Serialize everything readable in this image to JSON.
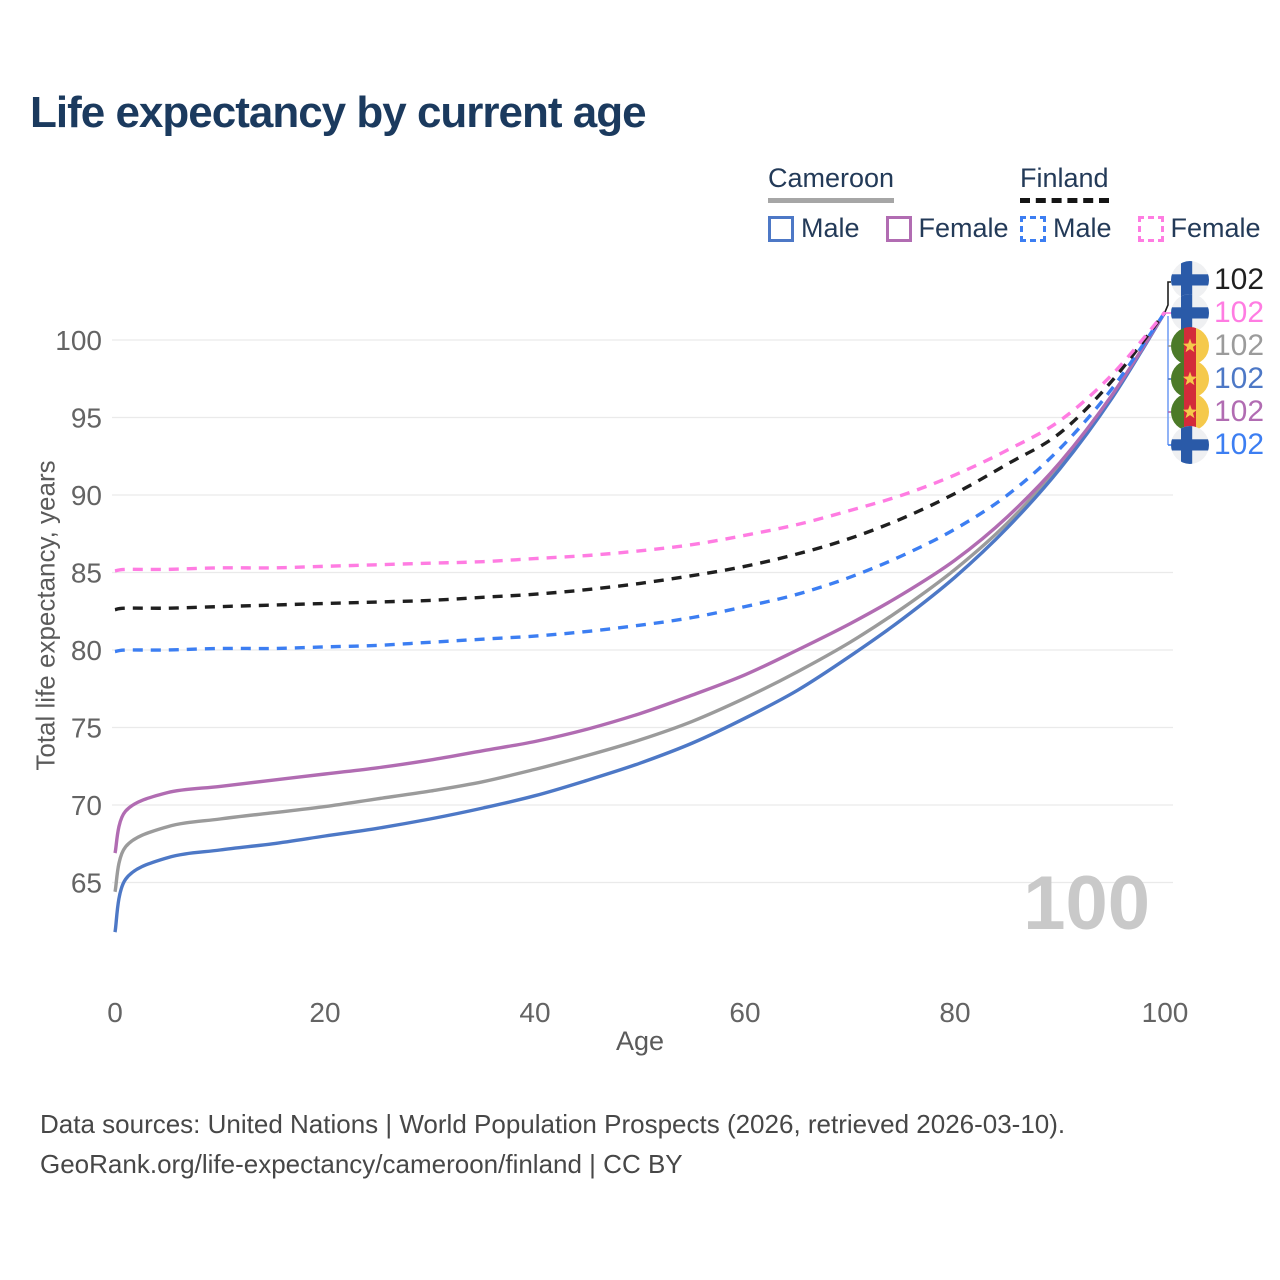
{
  "title": "Life expectancy by current age",
  "legend": {
    "groups": [
      {
        "name": "Cameroon",
        "underline": "solid",
        "underline_color": "#a6a6a6",
        "items": [
          {
            "label": "Male",
            "color": "#4d78c6",
            "dashed": false
          },
          {
            "label": "Female",
            "color": "#b16cb2",
            "dashed": false
          }
        ]
      },
      {
        "name": "Finland",
        "underline": "dashed",
        "underline_color": "#151515",
        "items": [
          {
            "label": "Male",
            "color": "#3c7ef2",
            "dashed": true
          },
          {
            "label": "Female",
            "color": "#ff7ce2",
            "dashed": true
          }
        ]
      }
    ]
  },
  "chart_data": {
    "type": "line",
    "title": "Life expectancy by current age",
    "xlabel": "Age",
    "ylabel": "Total life expectancy, years",
    "xlim": [
      0,
      100
    ],
    "ylim": [
      61,
      103
    ],
    "x_ticks": [
      0,
      20,
      40,
      60,
      80,
      100
    ],
    "y_ticks": [
      65,
      70,
      75,
      80,
      85,
      90,
      95,
      100
    ],
    "grid": "horizontal",
    "watermark": "100",
    "x": [
      0,
      1,
      5,
      10,
      15,
      20,
      25,
      30,
      35,
      40,
      45,
      50,
      55,
      60,
      65,
      70,
      75,
      80,
      85,
      90,
      95,
      100
    ],
    "series": [
      {
        "id": "cameroon-both",
        "country": "Cameroon",
        "sex": "Both sexes",
        "style": "solid",
        "color": "#9b9b9b",
        "values": [
          64.4,
          67.3,
          68.6,
          69.1,
          69.5,
          69.9,
          70.4,
          70.9,
          71.5,
          72.3,
          73.2,
          74.2,
          75.4,
          76.9,
          78.6,
          80.5,
          82.7,
          85.2,
          88.2,
          91.9,
          96.4,
          101.8
        ]
      },
      {
        "id": "cameroon-male",
        "country": "Cameroon",
        "sex": "Male",
        "style": "solid",
        "color": "#4d78c6",
        "values": [
          61.8,
          65.2,
          66.6,
          67.1,
          67.5,
          68.0,
          68.5,
          69.1,
          69.8,
          70.6,
          71.6,
          72.7,
          74.0,
          75.6,
          77.4,
          79.6,
          82.0,
          84.7,
          87.9,
          91.7,
          96.3,
          101.8
        ]
      },
      {
        "id": "cameroon-female",
        "country": "Cameroon",
        "sex": "Female",
        "style": "solid",
        "color": "#b16cb2",
        "values": [
          66.9,
          69.6,
          70.8,
          71.2,
          71.6,
          72.0,
          72.4,
          72.9,
          73.5,
          74.1,
          74.9,
          75.9,
          77.1,
          78.4,
          80.0,
          81.7,
          83.6,
          85.8,
          88.6,
          92.1,
          96.5,
          101.8
        ]
      },
      {
        "id": "finland-male",
        "country": "Finland",
        "sex": "Male",
        "style": "dashed",
        "color": "#3c7ef2",
        "values": [
          79.9,
          80.0,
          80.0,
          80.1,
          80.1,
          80.2,
          80.3,
          80.5,
          80.7,
          80.9,
          81.2,
          81.6,
          82.1,
          82.8,
          83.6,
          84.7,
          86.1,
          87.8,
          90.0,
          93.0,
          96.9,
          101.8
        ]
      },
      {
        "id": "finland-both",
        "country": "Finland",
        "sex": "Both sexes",
        "style": "dashed",
        "color": "#1f1f1f",
        "values": [
          82.6,
          82.7,
          82.7,
          82.8,
          82.9,
          83.0,
          83.1,
          83.2,
          83.4,
          83.6,
          83.9,
          84.3,
          84.8,
          85.4,
          86.2,
          87.2,
          88.5,
          90.1,
          92.0,
          94.0,
          97.4,
          101.8
        ]
      },
      {
        "id": "finland-female",
        "country": "Finland",
        "sex": "Female",
        "style": "dashed",
        "color": "#ff7ce2",
        "values": [
          85.1,
          85.2,
          85.2,
          85.3,
          85.3,
          85.4,
          85.5,
          85.6,
          85.7,
          85.9,
          86.1,
          86.4,
          86.8,
          87.4,
          88.1,
          89.0,
          90.0,
          91.3,
          92.9,
          94.8,
          97.8,
          101.8
        ]
      }
    ],
    "end_labels": [
      {
        "series": "finland-both",
        "flag": "finland",
        "value": "102",
        "color": "#1f1f1f"
      },
      {
        "series": "finland-female",
        "flag": "finland",
        "value": "102",
        "color": "#ff7ce2"
      },
      {
        "series": "cameroon-both",
        "flag": "cameroon",
        "value": "102",
        "color": "#9b9b9b"
      },
      {
        "series": "cameroon-male",
        "flag": "cameroon",
        "value": "102",
        "color": "#4d78c6"
      },
      {
        "series": "cameroon-female",
        "flag": "cameroon",
        "value": "102",
        "color": "#b16cb2"
      },
      {
        "series": "finland-male",
        "flag": "finland",
        "value": "102",
        "color": "#3c7ef2"
      }
    ]
  },
  "footer": {
    "line1": "Data sources: United Nations | World Population Prospects (2026, retrieved 2026-03-10).",
    "line2": "GeoRank.org/life-expectancy/cameroon/finland | CC BY"
  }
}
